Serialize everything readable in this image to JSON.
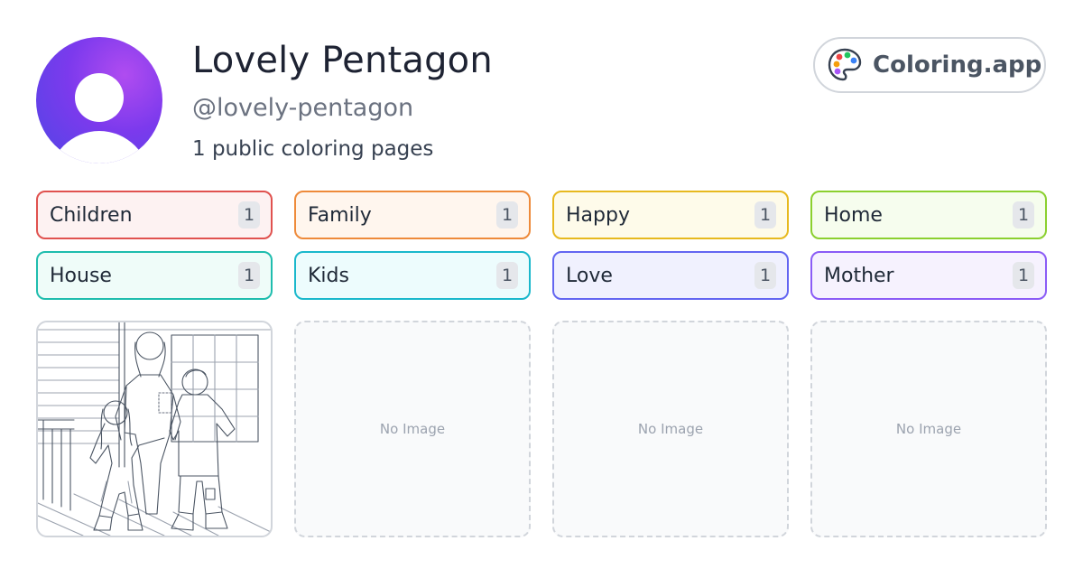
{
  "profile": {
    "name": "Lovely Pentagon",
    "handle": "@lovely-pentagon",
    "count_text": "1 public coloring pages"
  },
  "brand": {
    "label": "Coloring.app",
    "icon": "palette-icon"
  },
  "tags": [
    {
      "label": "Children",
      "count": "1",
      "border": "#e0524f",
      "bg": "#fdf2f2"
    },
    {
      "label": "Family",
      "count": "1",
      "border": "#ee8a3a",
      "bg": "#fff6ee"
    },
    {
      "label": "Happy",
      "count": "1",
      "border": "#e7b91f",
      "bg": "#fefbea"
    },
    {
      "label": "Home",
      "count": "1",
      "border": "#8bd02f",
      "bg": "#f6fdee"
    },
    {
      "label": "House",
      "count": "1",
      "border": "#1fbdae",
      "bg": "#effcf9"
    },
    {
      "label": "Kids",
      "count": "1",
      "border": "#1ab8cc",
      "bg": "#edfcfd"
    },
    {
      "label": "Love",
      "count": "1",
      "border": "#6366f1",
      "bg": "#f0f1fe"
    },
    {
      "label": "Mother",
      "count": "1",
      "border": "#8b5cf6",
      "bg": "#f6f2fe"
    }
  ],
  "cards": [
    {
      "type": "image",
      "subject": "coloring-page-family-porch"
    },
    {
      "type": "empty",
      "label": "No Image"
    },
    {
      "type": "empty",
      "label": "No Image"
    },
    {
      "type": "empty",
      "label": "No Image"
    }
  ]
}
